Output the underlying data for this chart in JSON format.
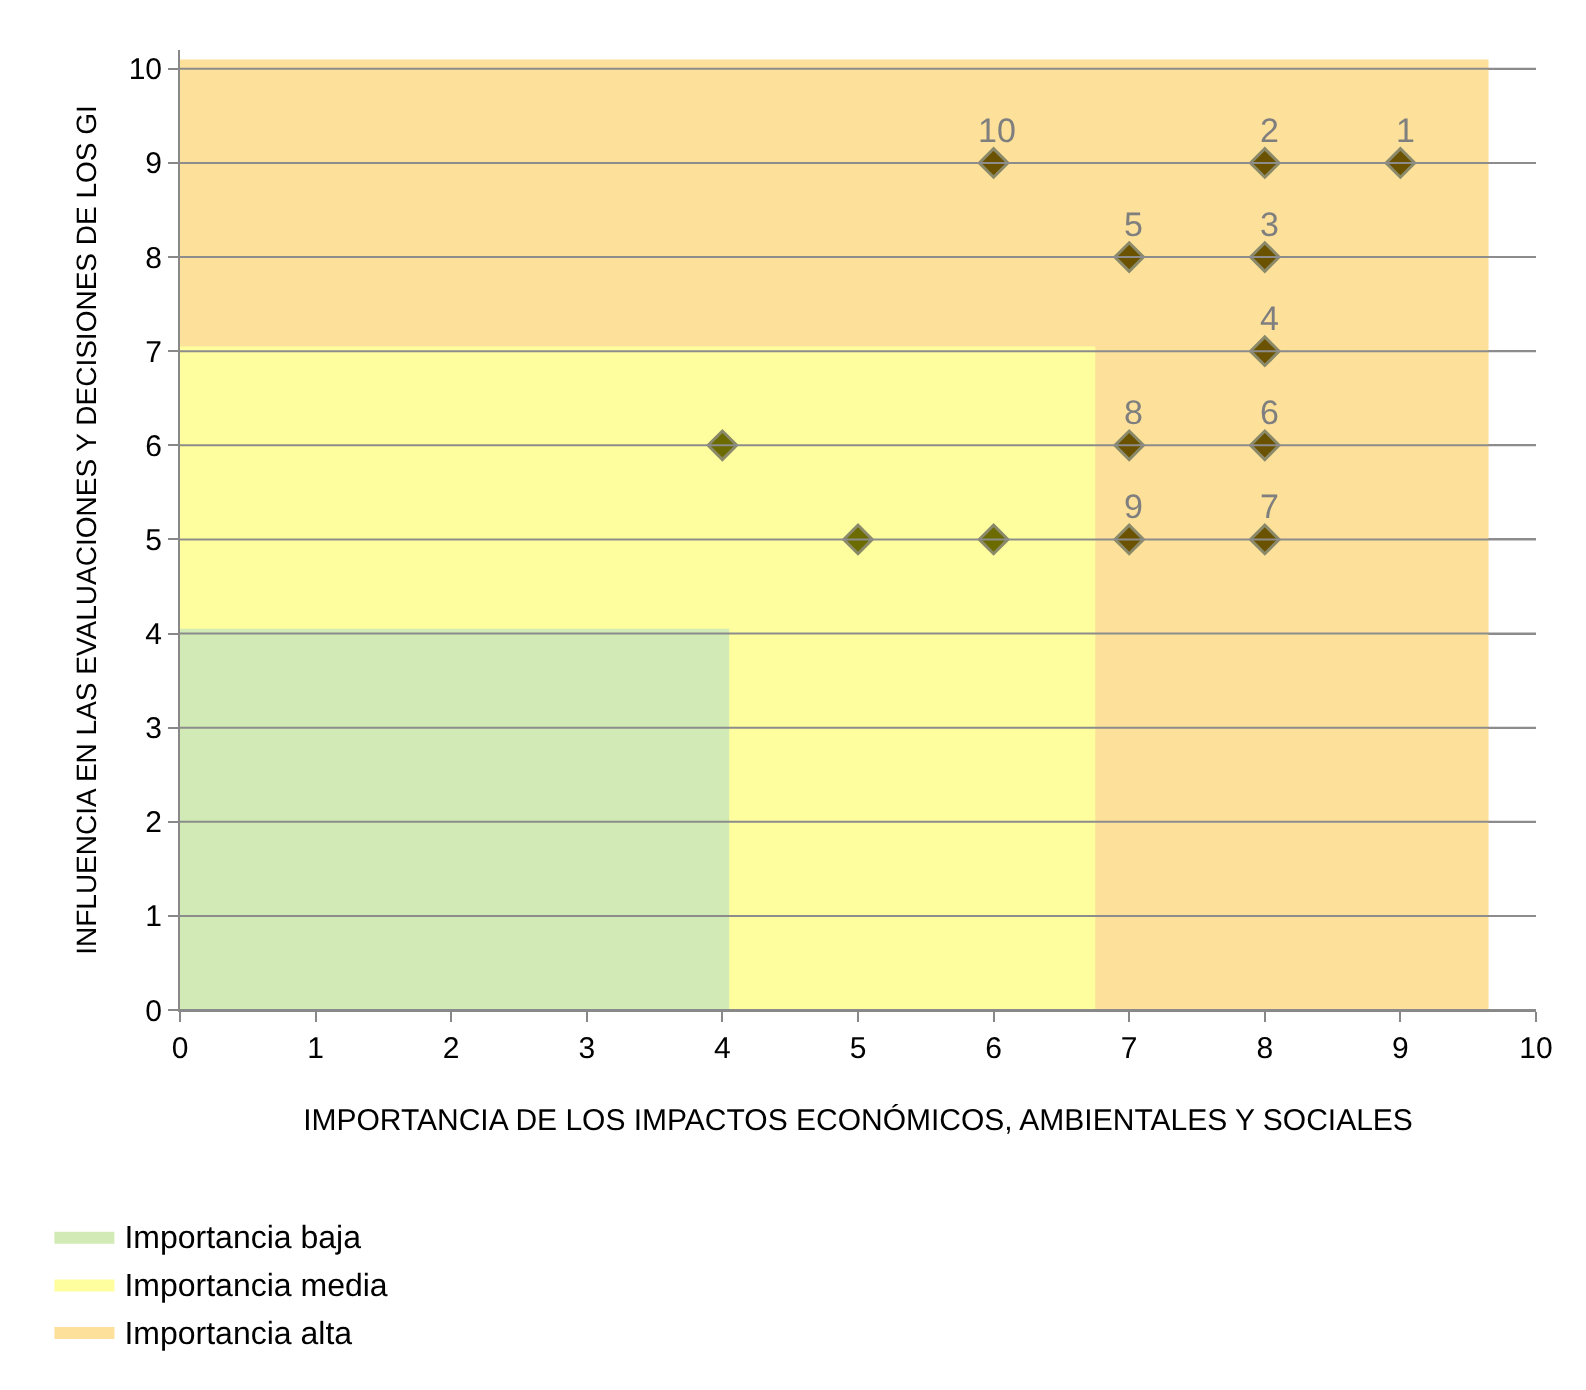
{
  "chart_data": {
    "type": "scatter",
    "xlabel": "IMPORTANCIA DE LOS IMPACTOS ECONÓMICOS, AMBIENTALES Y SOCIALES",
    "ylabel": "INFLUENCIA EN LAS EVALUACIONES Y DECISIONES DE LOS GI",
    "xlim": [
      0,
      10
    ],
    "xticks": [
      0,
      1,
      2,
      3,
      4,
      5,
      6,
      7,
      8,
      9,
      10
    ],
    "ylim": [
      0,
      10.2
    ],
    "yticks": [
      0,
      1,
      2,
      3,
      4,
      5,
      6,
      7,
      8,
      9,
      10
    ],
    "grid": "y",
    "legend": "bottom",
    "series": [
      {
        "name": "Importancia alta",
        "type": "area",
        "color": "#fde09a",
        "x": [
          0,
          9.65
        ],
        "values": [
          10.1,
          10.1
        ]
      },
      {
        "name": "Importancia media",
        "type": "area",
        "color": "#fefe9e",
        "x": [
          0,
          6.75
        ],
        "values": [
          7.05,
          7.05
        ]
      },
      {
        "name": "Importancia baja",
        "type": "area",
        "color": "#d2eab5",
        "x": [
          0,
          4.05
        ],
        "values": [
          4.05,
          4.05
        ]
      },
      {
        "marker": "diamond",
        "color": "#6b5200",
        "x": [
          9,
          8,
          8,
          8,
          7,
          8,
          8,
          7,
          7,
          6
        ],
        "values": [
          9,
          9,
          8,
          7,
          8,
          6,
          5,
          6,
          5,
          9
        ]
      },
      {
        "marker": "diamond",
        "color": "#6b6b00",
        "x": [
          4,
          5,
          6
        ],
        "values": [
          6,
          5,
          5
        ]
      }
    ],
    "annotations": [
      {
        "text": "1",
        "x": 9,
        "y": 9
      },
      {
        "text": "2",
        "x": 8,
        "y": 9
      },
      {
        "text": "3",
        "x": 8,
        "y": 8
      },
      {
        "text": "4",
        "x": 8,
        "y": 7
      },
      {
        "text": "5",
        "x": 7,
        "y": 8
      },
      {
        "text": "6",
        "x": 8,
        "y": 6
      },
      {
        "text": "7",
        "x": 8,
        "y": 5
      },
      {
        "text": "8",
        "x": 7,
        "y": 6
      },
      {
        "text": "9",
        "x": 7,
        "y": 5
      },
      {
        "text": "10",
        "x": 6,
        "y": 9
      }
    ]
  }
}
